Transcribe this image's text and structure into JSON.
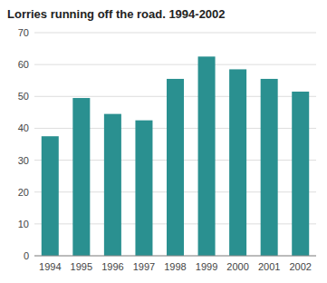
{
  "chart_data": {
    "type": "bar",
    "title": "Lorries running off the road. 1994-2002",
    "categories": [
      "1994",
      "1995",
      "1996",
      "1997",
      "1998",
      "1999",
      "2000",
      "2001",
      "2002"
    ],
    "values": [
      37.5,
      49.5,
      44.5,
      42.5,
      55.5,
      62.5,
      58.5,
      55.5,
      51.5
    ],
    "color": "#2a9090",
    "ylim": [
      0,
      70
    ],
    "yticks": [
      0,
      10,
      20,
      30,
      40,
      50,
      60,
      70
    ],
    "grid": true
  }
}
